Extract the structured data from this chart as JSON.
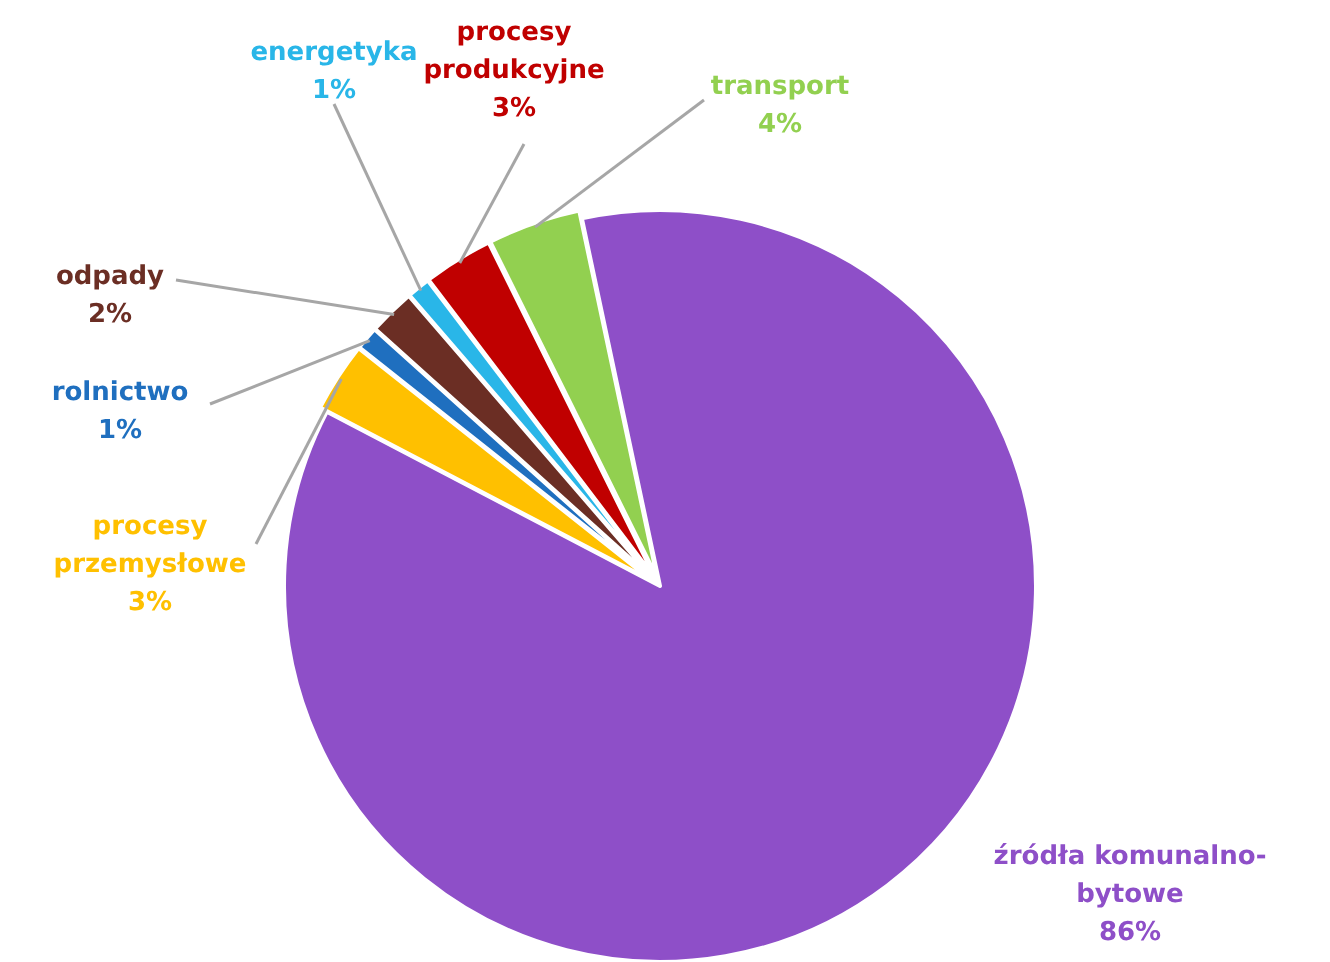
{
  "chart_data": {
    "type": "pie",
    "categories": [
      "źródła komunalno-bytowe",
      "procesy przemysłowe",
      "rolnictwo",
      "odpady",
      "energetyka",
      "procesy produkcyjne",
      "transport"
    ],
    "values": [
      86,
      3,
      1,
      2,
      1,
      3,
      4
    ],
    "colors": [
      "#8e4fc8",
      "#ffc000",
      "#1f6fbf",
      "#6b2e24",
      "#29b6e8",
      "#c00000",
      "#92d050"
    ],
    "value_labels": [
      "86%",
      "3%",
      "1%",
      "2%",
      "1%",
      "3%",
      "4%"
    ]
  }
}
